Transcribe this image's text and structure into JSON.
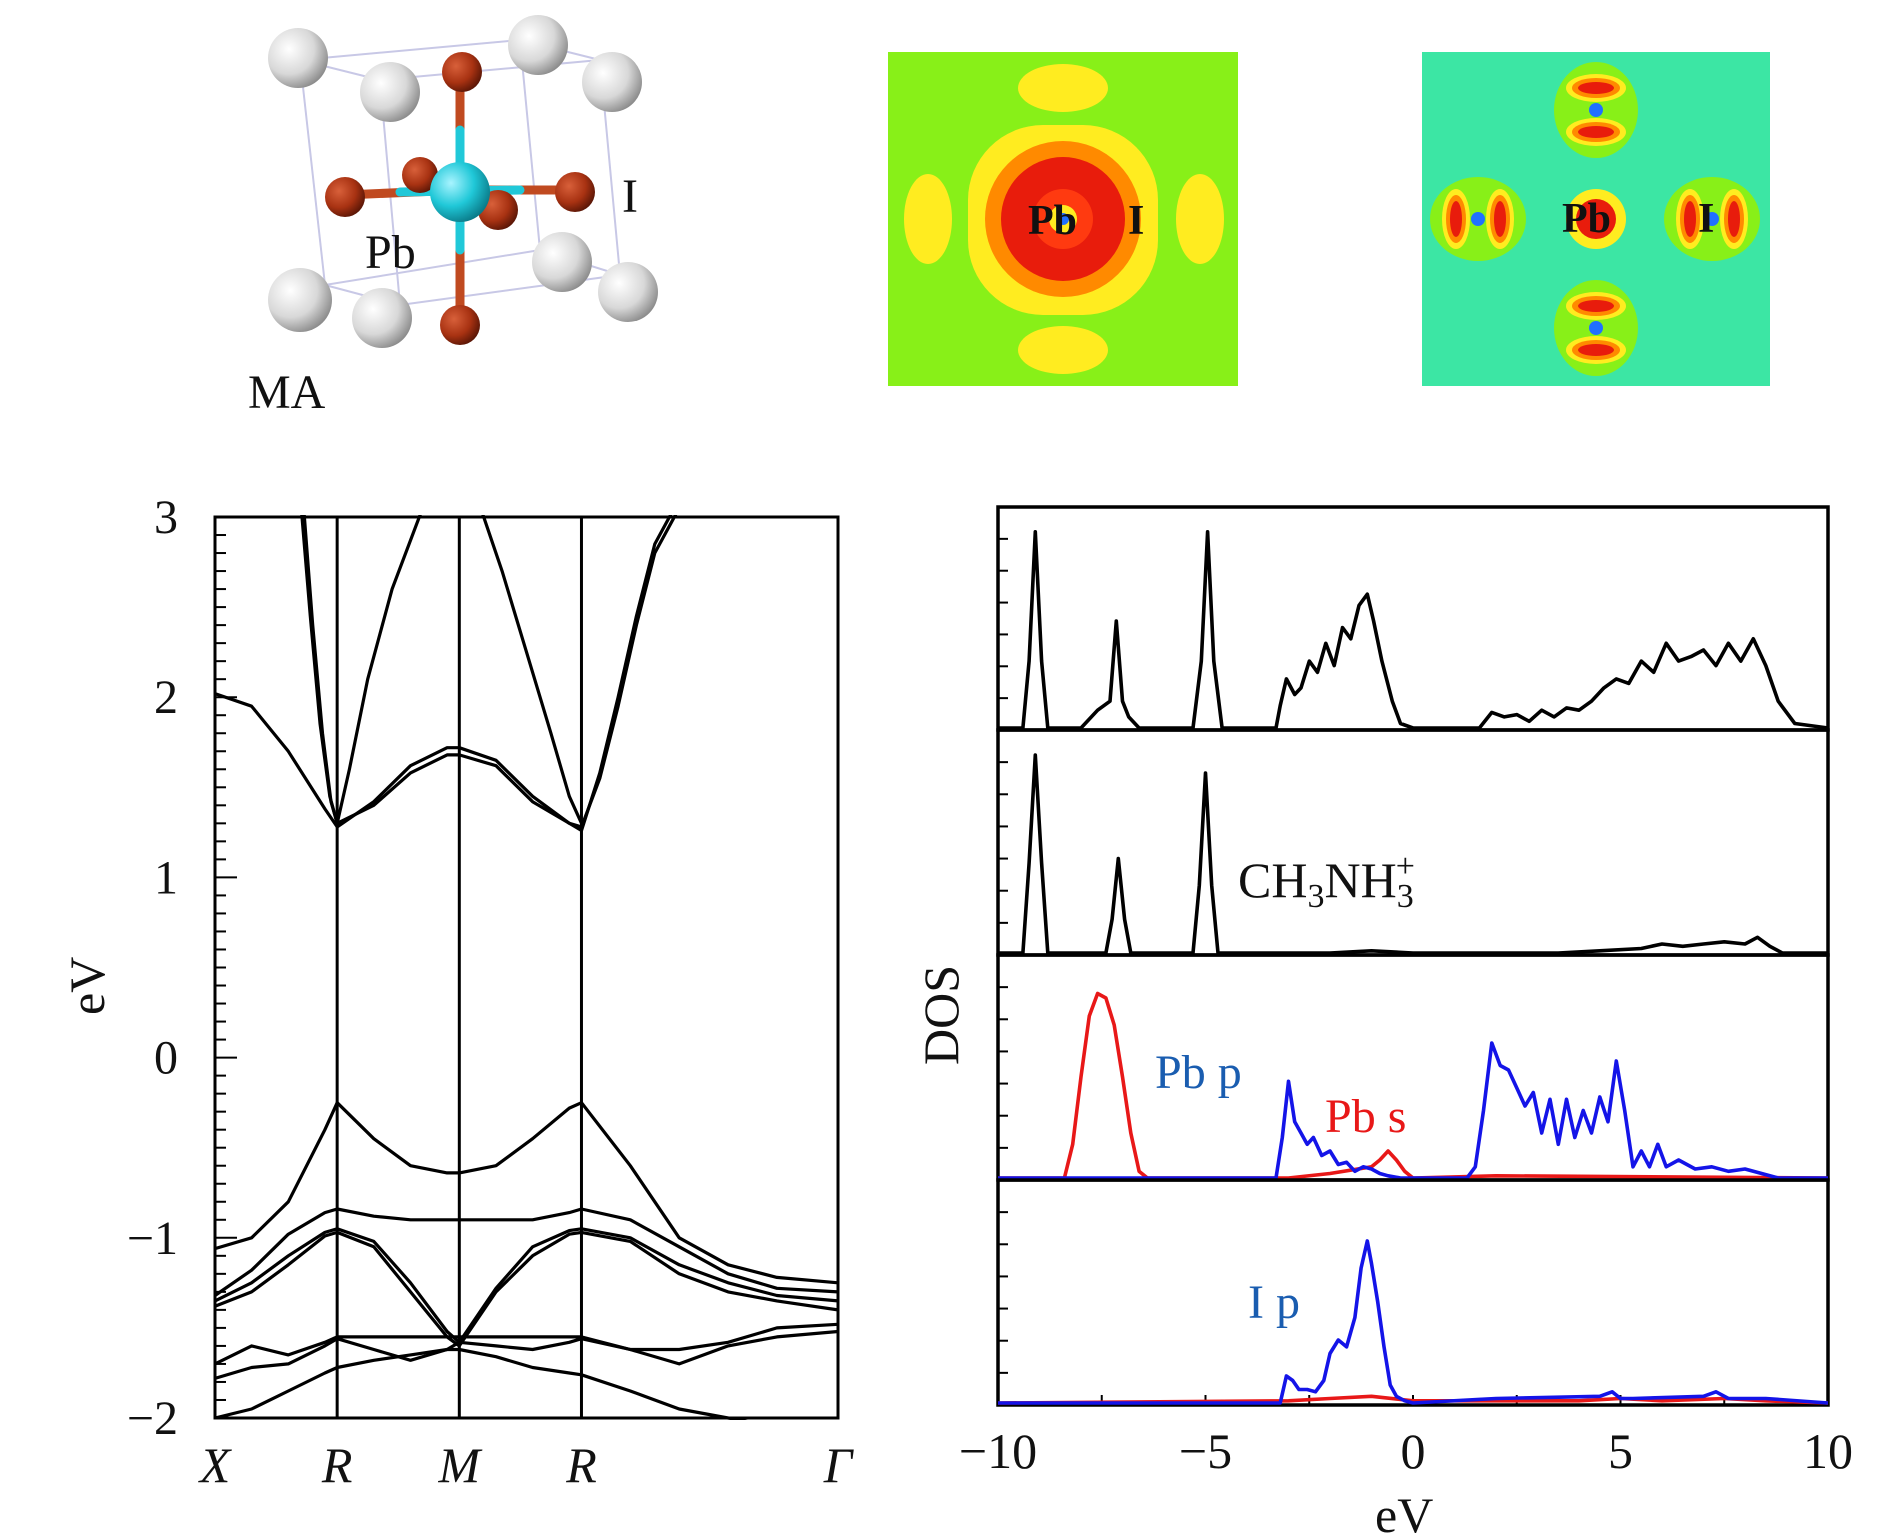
{
  "crystal": {
    "labels": {
      "pb": "Pb",
      "i": "I",
      "ma": "MA"
    },
    "colors": {
      "ma": "#d8d8d8",
      "pb": "#20c8d8",
      "i": "#a83212",
      "bond_pb": "#20c8d8",
      "bond_i": "#c04a20",
      "frame": "#c8c8e6"
    }
  },
  "orbital_maps": [
    {
      "labels": [
        "Pb",
        "I"
      ],
      "background": "#88f018",
      "colors": [
        "#ffec20",
        "#ff8a00",
        "#e81c0c",
        "#2070ff"
      ]
    },
    {
      "labels": [
        "Pb",
        "I"
      ],
      "background": "#3ce6a4",
      "colors": [
        "#ffec20",
        "#ff8a00",
        "#e81c0c",
        "#2070ff"
      ]
    }
  ],
  "chart_data": [
    {
      "type": "line",
      "subtype": "band_structure",
      "ylabel": "eV",
      "ylim": [
        -2,
        3
      ],
      "yticks": [
        "3",
        "2",
        "1",
        "0",
        "−1",
        "−2"
      ],
      "k_labels": [
        "X",
        "R",
        "M",
        "R",
        "Γ"
      ],
      "k_ticks": [
        0,
        1,
        2,
        3,
        5.1
      ],
      "line_color": "#000000",
      "bands": [
        {
          "x": [
            0,
            0.3,
            0.6,
            0.9,
            1.0,
            1.3,
            1.6,
            1.9,
            2.0,
            2.3,
            2.6,
            2.9,
            3.0,
            3.4,
            3.8,
            4.2,
            4.6,
            5.1
          ],
          "y": [
            -2.0,
            -1.95,
            -1.85,
            -1.75,
            -1.72,
            -1.68,
            -1.65,
            -1.62,
            -1.62,
            -1.66,
            -1.72,
            -1.75,
            -1.76,
            -1.85,
            -1.95,
            -2.0,
            -2.05,
            -2.1
          ]
        },
        {
          "x": [
            0,
            0.3,
            0.6,
            0.9,
            1.0,
            1.3,
            1.6,
            1.9,
            2.0,
            2.3,
            2.6,
            2.9,
            3.0,
            3.4,
            3.8,
            4.2,
            4.6,
            5.1
          ],
          "y": [
            -1.78,
            -1.72,
            -1.7,
            -1.6,
            -1.56,
            -1.62,
            -1.68,
            -1.62,
            -1.58,
            -1.6,
            -1.62,
            -1.58,
            -1.56,
            -1.62,
            -1.7,
            -1.6,
            -1.55,
            -1.52
          ]
        },
        {
          "x": [
            0,
            0.3,
            0.6,
            0.9,
            1.0,
            1.3,
            1.6,
            1.9,
            2.0,
            2.3,
            2.6,
            2.9,
            3.0,
            3.4,
            3.8,
            4.2,
            4.6,
            5.1
          ],
          "y": [
            -1.7,
            -1.6,
            -1.65,
            -1.58,
            -1.55,
            -1.55,
            -1.55,
            -1.55,
            -1.55,
            -1.55,
            -1.55,
            -1.55,
            -1.55,
            -1.62,
            -1.62,
            -1.58,
            -1.5,
            -1.48
          ]
        },
        {
          "x": [
            0,
            0.3,
            0.6,
            0.9,
            1.0,
            1.3,
            1.6,
            1.9,
            2.0,
            2.3,
            2.6,
            2.9,
            3.0,
            3.4,
            3.8,
            4.2,
            4.6,
            5.1
          ],
          "y": [
            -1.38,
            -1.3,
            -1.15,
            -0.99,
            -0.97,
            -1.05,
            -1.3,
            -1.55,
            -1.6,
            -1.3,
            -1.1,
            -0.98,
            -0.97,
            -1.02,
            -1.2,
            -1.3,
            -1.35,
            -1.4
          ]
        },
        {
          "x": [
            0,
            0.3,
            0.6,
            0.9,
            1.0,
            1.3,
            1.6,
            1.9,
            2.0,
            2.3,
            2.6,
            2.9,
            3.0,
            3.4,
            3.8,
            4.2,
            4.6,
            5.1
          ],
          "y": [
            -1.35,
            -1.25,
            -1.1,
            -0.97,
            -0.95,
            -1.02,
            -1.25,
            -1.52,
            -1.58,
            -1.28,
            -1.05,
            -0.96,
            -0.95,
            -1.0,
            -1.15,
            -1.25,
            -1.32,
            -1.35
          ]
        },
        {
          "x": [
            0,
            0.3,
            0.6,
            0.9,
            1.0,
            1.3,
            1.6,
            1.9,
            2.0,
            2.3,
            2.6,
            2.9,
            3.0,
            3.4,
            3.8,
            4.2,
            4.6,
            5.1
          ],
          "y": [
            -1.32,
            -1.18,
            -0.98,
            -0.86,
            -0.84,
            -0.88,
            -0.9,
            -0.9,
            -0.9,
            -0.9,
            -0.9,
            -0.86,
            -0.84,
            -0.9,
            -1.05,
            -1.2,
            -1.28,
            -1.3
          ]
        },
        {
          "x": [
            0,
            0.3,
            0.6,
            0.9,
            1.0,
            1.3,
            1.6,
            1.9,
            2.0,
            2.3,
            2.6,
            2.9,
            3.0,
            3.4,
            3.8,
            4.2,
            4.6,
            5.1
          ],
          "y": [
            -1.06,
            -1.0,
            -0.8,
            -0.4,
            -0.25,
            -0.45,
            -0.6,
            -0.64,
            -0.64,
            -0.6,
            -0.45,
            -0.28,
            -0.25,
            -0.6,
            -1.0,
            -1.15,
            -1.22,
            -1.25
          ]
        },
        {
          "x": [
            0,
            0.3,
            0.6,
            0.9,
            1.0,
            1.3,
            1.6,
            1.9,
            2.0,
            2.3,
            2.6,
            2.9,
            3.0,
            3.15,
            3.3,
            3.45,
            3.6,
            3.8
          ],
          "y": [
            2.02,
            1.95,
            1.7,
            1.38,
            1.28,
            1.42,
            1.62,
            1.72,
            1.72,
            1.65,
            1.45,
            1.3,
            1.28,
            1.55,
            1.95,
            2.4,
            2.8,
            3.05
          ]
        },
        {
          "x": [
            0.72,
            0.8,
            0.88,
            0.95,
            1.0,
            1.3,
            1.6,
            1.9,
            2.0,
            2.3,
            2.6,
            2.9,
            3.0,
            3.15,
            3.3,
            3.45,
            3.6,
            3.8
          ],
          "y": [
            3.1,
            2.4,
            1.8,
            1.42,
            1.3,
            1.4,
            1.58,
            1.68,
            1.68,
            1.62,
            1.42,
            1.3,
            1.26,
            1.58,
            2.0,
            2.45,
            2.85,
            3.1
          ]
        },
        {
          "x": [
            0.7,
            0.78,
            0.86,
            0.94,
            1.0,
            1.1,
            1.25,
            1.45,
            1.7,
            1.9,
            2.0,
            2.15,
            2.35,
            2.55,
            2.75,
            2.9,
            3.0
          ],
          "y": [
            3.1,
            2.45,
            1.85,
            1.45,
            1.3,
            1.6,
            2.1,
            2.6,
            3.05,
            3.3,
            3.3,
            3.1,
            2.7,
            2.25,
            1.8,
            1.45,
            1.3
          ]
        }
      ]
    },
    {
      "type": "line",
      "subtype": "density_of_states",
      "xlabel": "eV",
      "ylabel": "DOS",
      "xlim": [
        -10,
        10
      ],
      "xticks": [
        "−10",
        "−5",
        "0",
        "5",
        "10"
      ],
      "panels": [
        {
          "series": [
            {
              "name": "",
              "color": "#000000",
              "x": [
                -10,
                -9.4,
                -9.25,
                -9.1,
                -8.95,
                -8.8,
                -8.0,
                -7.6,
                -7.3,
                -7.15,
                -7.0,
                -6.85,
                -6.6,
                -5.3,
                -5.1,
                -4.95,
                -4.8,
                -4.6,
                -3.3,
                -3.2,
                -3.05,
                -2.85,
                -2.7,
                -2.5,
                -2.3,
                -2.1,
                -1.9,
                -1.7,
                -1.5,
                -1.3,
                -1.1,
                -0.95,
                -0.75,
                -0.5,
                -0.3,
                0.0,
                1.6,
                1.9,
                2.2,
                2.5,
                2.8,
                3.1,
                3.4,
                3.7,
                4.0,
                4.3,
                4.6,
                4.9,
                5.2,
                5.5,
                5.8,
                6.1,
                6.4,
                6.7,
                7.0,
                7.3,
                7.6,
                7.9,
                8.2,
                8.5,
                8.8,
                9.2,
                10
              ],
              "y": [
                0,
                0,
                0.3,
                0.88,
                0.3,
                0,
                0,
                0.08,
                0.12,
                0.48,
                0.12,
                0.05,
                0,
                0,
                0.3,
                0.88,
                0.3,
                0,
                0,
                0.1,
                0.22,
                0.15,
                0.18,
                0.3,
                0.25,
                0.38,
                0.28,
                0.45,
                0.4,
                0.55,
                0.6,
                0.48,
                0.3,
                0.12,
                0.02,
                0,
                0,
                0.07,
                0.05,
                0.06,
                0.03,
                0.08,
                0.05,
                0.09,
                0.08,
                0.12,
                0.18,
                0.22,
                0.2,
                0.3,
                0.25,
                0.38,
                0.3,
                0.32,
                0.35,
                0.28,
                0.38,
                0.3,
                0.4,
                0.28,
                0.12,
                0.02,
                0
              ]
            }
          ]
        },
        {
          "series": [
            {
              "name": "",
              "color": "#000000",
              "x": [
                -10,
                -9.4,
                -9.25,
                -9.1,
                -8.95,
                -8.8,
                -7.4,
                -7.25,
                -7.1,
                -6.95,
                -6.8,
                -5.3,
                -5.15,
                -5.0,
                -4.85,
                -4.7,
                -2.0,
                -1.0,
                0.0,
                3.5,
                4.5,
                5.5,
                6.0,
                6.5,
                7.0,
                7.5,
                8.0,
                8.3,
                8.6,
                8.9,
                10
              ],
              "y": [
                0,
                0,
                0.4,
                0.88,
                0.4,
                0,
                0,
                0.15,
                0.42,
                0.15,
                0,
                0,
                0.3,
                0.8,
                0.3,
                0,
                0,
                0.01,
                0,
                0,
                0.01,
                0.02,
                0.04,
                0.03,
                0.04,
                0.05,
                0.04,
                0.07,
                0.03,
                0,
                0
              ]
            }
          ],
          "annotation": {
            "text": "CH",
            "sub1": "3",
            "mid": "NH",
            "sub2": "3",
            "sup": "+"
          }
        },
        {
          "series": [
            {
              "name": "Pb s",
              "color": "#e81818",
              "x": [
                -10,
                -8.4,
                -8.2,
                -8.0,
                -7.8,
                -7.6,
                -7.4,
                -7.2,
                -7.0,
                -6.8,
                -6.6,
                -6.4,
                -3.0,
                -2.0,
                -1.0,
                -0.8,
                -0.6,
                -0.4,
                -0.2,
                0.0,
                2.0,
                10
              ],
              "y": [
                0,
                0,
                0.15,
                0.45,
                0.72,
                0.82,
                0.8,
                0.68,
                0.45,
                0.2,
                0.03,
                0,
                0,
                0.02,
                0.05,
                0.08,
                0.12,
                0.08,
                0.03,
                0,
                0.01,
                0
              ]
            },
            {
              "name": "Pb p",
              "color": "#1414e8",
              "x": [
                -10,
                -3.3,
                -3.15,
                -3.0,
                -2.85,
                -2.7,
                -2.55,
                -2.4,
                -2.2,
                -2.0,
                -1.8,
                -1.6,
                -1.4,
                -1.2,
                -1.0,
                -0.8,
                -0.6,
                -0.3,
                0.0,
                1.3,
                1.5,
                1.7,
                1.9,
                2.1,
                2.3,
                2.5,
                2.7,
                2.9,
                3.1,
                3.3,
                3.5,
                3.7,
                3.9,
                4.1,
                4.3,
                4.5,
                4.7,
                4.9,
                5.1,
                5.3,
                5.5,
                5.7,
                5.9,
                6.1,
                6.4,
                6.8,
                7.2,
                7.6,
                8.0,
                8.4,
                8.8,
                10
              ],
              "y": [
                0,
                0,
                0.18,
                0.43,
                0.25,
                0.2,
                0.15,
                0.18,
                0.1,
                0.12,
                0.06,
                0.07,
                0.03,
                0.05,
                0.04,
                0.02,
                0.01,
                0,
                0,
                0,
                0.05,
                0.3,
                0.6,
                0.5,
                0.48,
                0.4,
                0.32,
                0.38,
                0.2,
                0.35,
                0.15,
                0.35,
                0.18,
                0.3,
                0.2,
                0.36,
                0.25,
                0.52,
                0.3,
                0.05,
                0.12,
                0.05,
                0.15,
                0.05,
                0.08,
                0.04,
                0.05,
                0.03,
                0.04,
                0.02,
                0,
                0
              ]
            }
          ]
        },
        {
          "series": [
            {
              "name": "",
              "color": "#e81818",
              "x": [
                -10,
                -3.0,
                -2.0,
                -1.0,
                0.0,
                4.0,
                5.0,
                6.0,
                7.5,
                8.5,
                10
              ],
              "y": [
                0,
                0.01,
                0.02,
                0.03,
                0.01,
                0.01,
                0.02,
                0.01,
                0.02,
                0.01,
                0
              ]
            },
            {
              "name": "I p",
              "color": "#1414e8",
              "x": [
                -10,
                -3.2,
                -3.05,
                -2.9,
                -2.75,
                -2.55,
                -2.35,
                -2.15,
                -2.0,
                -1.8,
                -1.6,
                -1.4,
                -1.25,
                -1.1,
                -1.0,
                -0.85,
                -0.7,
                -0.55,
                -0.4,
                -0.2,
                0.0,
                2.0,
                4.5,
                4.8,
                5.0,
                5.3,
                7.0,
                7.3,
                7.6,
                8.5,
                10
              ],
              "y": [
                0,
                0,
                0.12,
                0.1,
                0.06,
                0.06,
                0.05,
                0.1,
                0.22,
                0.28,
                0.25,
                0.38,
                0.6,
                0.72,
                0.62,
                0.45,
                0.25,
                0.08,
                0.03,
                0.01,
                0,
                0.02,
                0.03,
                0.05,
                0.02,
                0.02,
                0.03,
                0.05,
                0.02,
                0.02,
                0
              ]
            }
          ],
          "annotation": {
            "text": "I p"
          }
        }
      ]
    }
  ]
}
